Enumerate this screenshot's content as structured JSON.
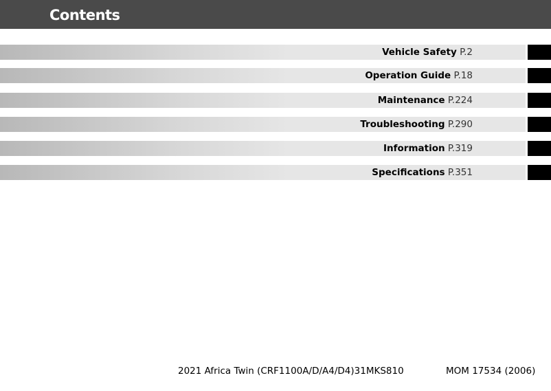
{
  "header": {
    "title": "Contents"
  },
  "entries": [
    {
      "label": "Vehicle Safety",
      "page": "P.2"
    },
    {
      "label": "Operation Guide",
      "page": "P.18"
    },
    {
      "label": "Maintenance",
      "page": "P.224"
    },
    {
      "label": "Troubleshooting",
      "page": "P.290"
    },
    {
      "label": "Information",
      "page": "P.319"
    },
    {
      "label": "Specifications",
      "page": "P.351"
    }
  ],
  "footer": {
    "model": "2021 Africa Twin (CRF1100A/D/A4/D4)31MKS810",
    "code": "MOM 17534 (2006)"
  }
}
